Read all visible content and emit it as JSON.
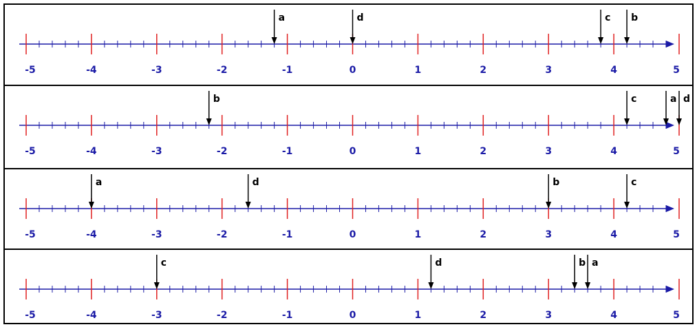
{
  "colors": {
    "axis": "#1a1aa6",
    "major_tick": "#e02020",
    "marker": "#000000",
    "frame": "#000000"
  },
  "axis": {
    "min": -5,
    "max": 5,
    "minor_step": 0.2,
    "tick_labels": [
      "-5",
      "-4",
      "-3",
      "-2",
      "-1",
      "0",
      "1",
      "2",
      "3",
      "4",
      "5"
    ]
  },
  "number_lines": [
    {
      "markers": [
        {
          "label": "a",
          "value": -1.2
        },
        {
          "label": "d",
          "value": 0
        },
        {
          "label": "c",
          "value": 3.8
        },
        {
          "label": "b",
          "value": 4.2
        }
      ]
    },
    {
      "markers": [
        {
          "label": "b",
          "value": -2.2
        },
        {
          "label": "c",
          "value": 4.2
        },
        {
          "label": "a",
          "value": 4.8
        },
        {
          "label": "d",
          "value": 5
        }
      ]
    },
    {
      "markers": [
        {
          "label": "a",
          "value": -4
        },
        {
          "label": "d",
          "value": -1.6
        },
        {
          "label": "b",
          "value": 3
        },
        {
          "label": "c",
          "value": 4.2
        }
      ]
    },
    {
      "markers": [
        {
          "label": "c",
          "value": -3
        },
        {
          "label": "d",
          "value": 1.2
        },
        {
          "label": "b",
          "value": 3.4
        },
        {
          "label": "a",
          "value": 3.6
        }
      ]
    }
  ]
}
